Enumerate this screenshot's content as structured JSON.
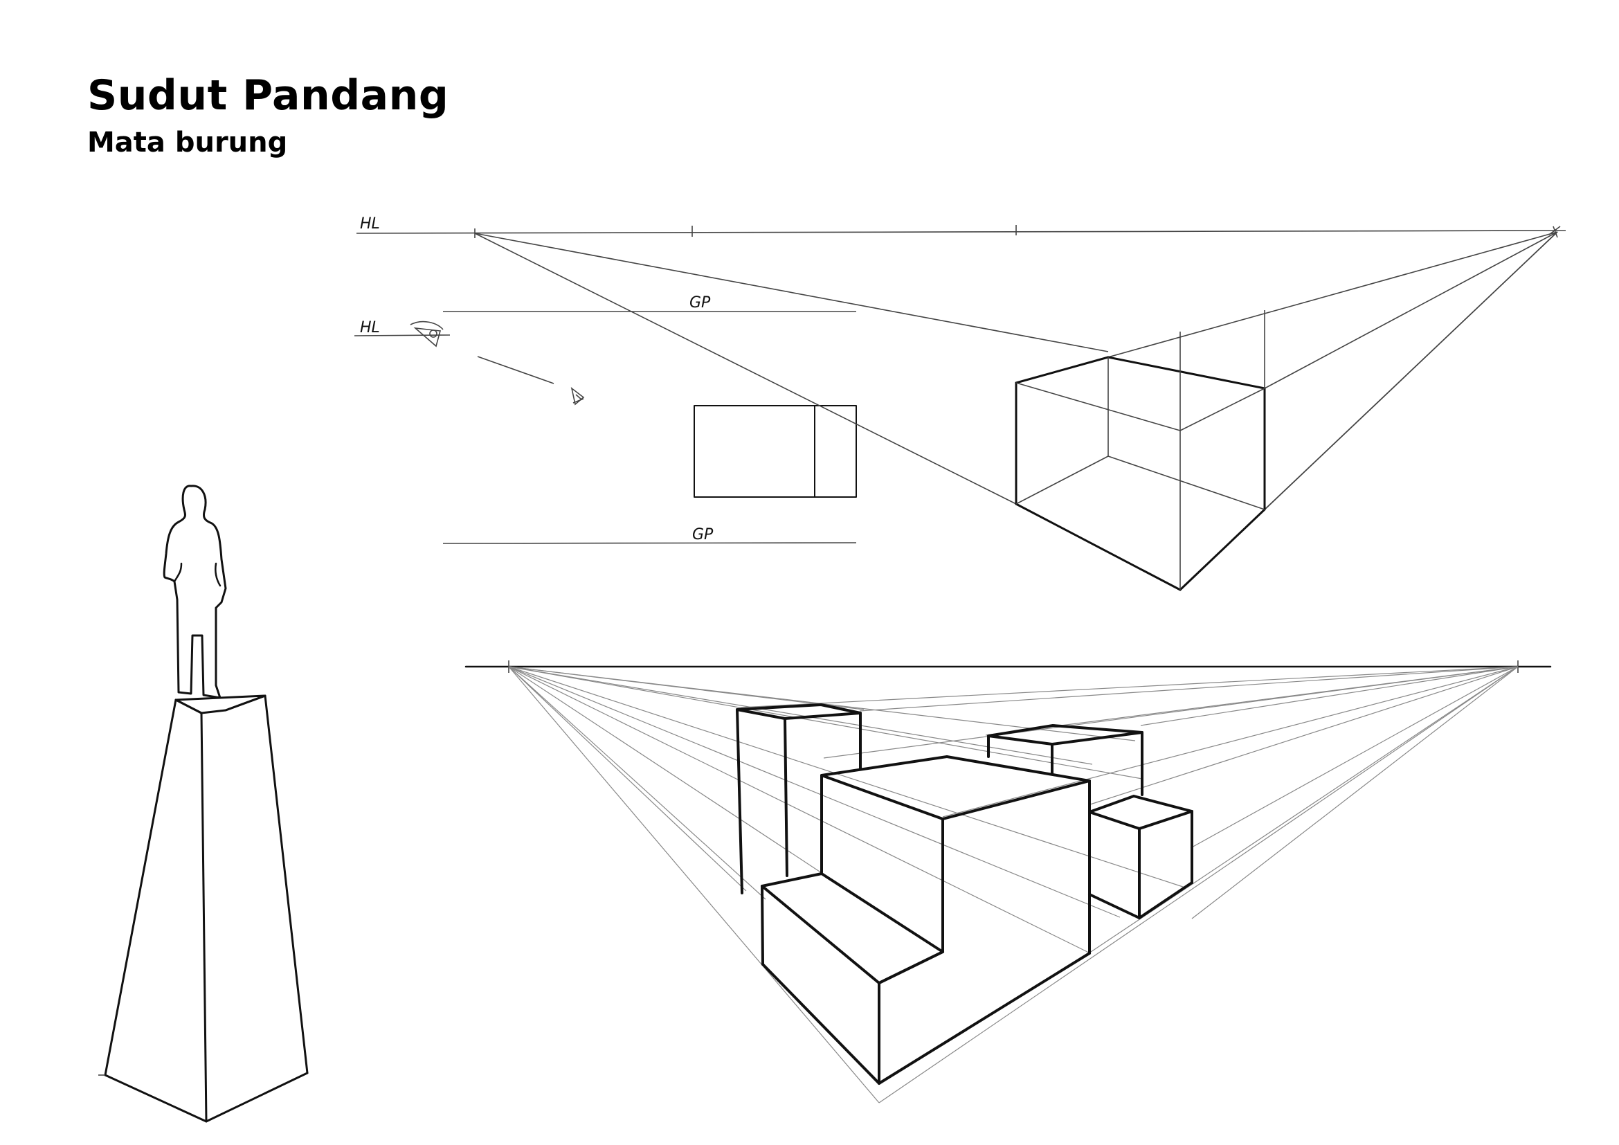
{
  "heading": {
    "title": "Sudut Pandang",
    "subtitle": "Mata burung"
  },
  "labels": {
    "hl_top": "HL",
    "hl_side": "HL",
    "gp_top": "GP",
    "gp_bottom": "GP"
  },
  "colors": {
    "ink": "#111111",
    "background": "#ffffff"
  }
}
